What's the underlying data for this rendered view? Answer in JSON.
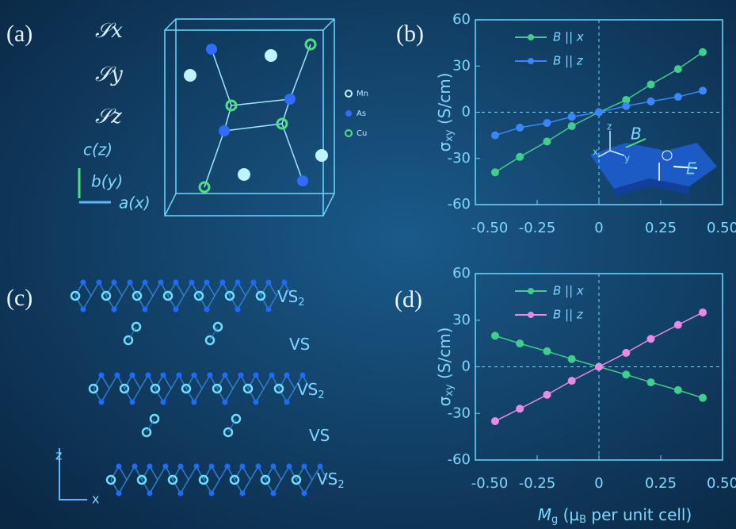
{
  "panels": {
    "a": {
      "label": "(a)",
      "spins": [
        "𝒮x",
        "𝒮y",
        "𝒮z"
      ],
      "atoms": [
        "Mn",
        "As",
        "Cu"
      ],
      "axes": [
        "c(z)",
        "b(y)",
        "a(x)"
      ]
    },
    "b": {
      "label": "(b)",
      "inset": [
        "z",
        "x",
        "y",
        "B",
        "E"
      ]
    },
    "c": {
      "label": "(c)",
      "layers": [
        [
          "VS",
          "2"
        ],
        [
          "VS"
        ],
        [
          "VS",
          "2"
        ],
        [
          "VS"
        ],
        [
          "VS",
          "2"
        ]
      ],
      "axes": [
        "z",
        "x"
      ]
    },
    "d": {
      "label": "(d)"
    }
  },
  "chart_data": [
    {
      "type": "scatter-line",
      "y_label": {
        "symbol": "σ",
        "sub": "xy",
        "unit": " (S/cm)"
      },
      "xlim": [
        -0.5,
        0.5
      ],
      "ylim": [
        -60,
        60
      ],
      "xticks": [
        {
          "value": -0.5,
          "label": "-0.50"
        },
        {
          "value": -0.25,
          "label": "-0.25"
        },
        0,
        0.25,
        {
          "value": 0.5,
          "label": "0.50"
        }
      ],
      "yticks": [
        -60,
        -30,
        0,
        30,
        60
      ],
      "x": [
        -0.42,
        -0.32,
        -0.21,
        -0.11,
        0,
        0.11,
        0.21,
        0.32,
        0.42
      ],
      "series": [
        {
          "name": "B || x",
          "color": "#3fcf8a",
          "values": [
            -39,
            -29,
            -19,
            -9,
            0,
            8,
            18,
            28,
            39
          ]
        },
        {
          "name": "B || z",
          "color": "#3a86ff",
          "values": [
            -15,
            -10,
            -7,
            -3,
            0,
            4,
            7,
            10,
            14
          ]
        }
      ]
    },
    {
      "type": "scatter-line",
      "y_label": {
        "symbol": "σ",
        "sub": "xy",
        "unit": " (S/cm)"
      },
      "x_label": {
        "symbol": "M",
        "sub": "g",
        "open": " (μ",
        "sub2": "B",
        "rest": " per unit cell)"
      },
      "xlim": [
        -0.5,
        0.5
      ],
      "ylim": [
        -60,
        60
      ],
      "xticks": [
        {
          "value": -0.5,
          "label": "-0.50"
        },
        {
          "value": -0.25,
          "label": "-0.25"
        },
        0,
        0.25,
        {
          "value": 0.5,
          "label": "0.50"
        }
      ],
      "yticks": [
        -60,
        -30,
        0,
        30,
        60
      ],
      "x": [
        -0.42,
        -0.32,
        -0.21,
        -0.11,
        0,
        0.11,
        0.21,
        0.32,
        0.42
      ],
      "series": [
        {
          "name": "B || x",
          "color": "#3fcf8a",
          "values": [
            20,
            15,
            10,
            5,
            0,
            -5,
            -10,
            -15,
            -20
          ]
        },
        {
          "name": "B || z",
          "color": "#e98be6",
          "values": [
            -35,
            -27,
            -18,
            -9,
            0,
            9,
            18,
            27,
            35
          ]
        }
      ]
    }
  ]
}
